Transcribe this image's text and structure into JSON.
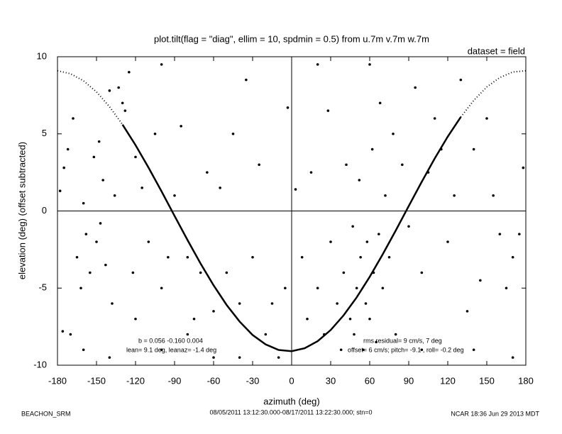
{
  "chart_data": {
    "type": "scatter",
    "title": "plot.tilt(flag = \"diag\", ellim = 10, spdmin = 0.5) from u.7m v.7m w.7m",
    "subtitle": "dataset = field",
    "x_label": "azimuth (deg)",
    "y_label": "elevation (deg)  (offset subtracted)",
    "annotations": [
      "b = 0.056 -0.160  0.004",
      "lean= 9.1 deg, leanaz= -1.4 deg",
      "rms residual= 9 cm/s, 7 deg",
      "offset= 6 cm/s; pitch= -9.1 , roll= -0.2 deg"
    ],
    "footer": [
      "BEACHON_SRM",
      "08/05/2011 13:12:30.000-08/17/2011 13:22:30.000; stn=0",
      "NCAR 18:36 Jun 29 2013 MDT"
    ],
    "xlim": [
      -180,
      180
    ],
    "ylim": [
      -10,
      10
    ],
    "xticks": [
      -180,
      -150,
      -120,
      -90,
      -60,
      -30,
      0,
      30,
      60,
      90,
      120,
      150,
      180
    ],
    "yticks": [
      -10,
      -5,
      0,
      5,
      10
    ],
    "series": [
      {
        "mark": "dot",
        "color": "#000000",
        "x": [
          -178,
          -175,
          -172,
          -168,
          -165,
          -162,
          -160,
          -158,
          -155,
          -152,
          -150,
          -148,
          -147,
          -145,
          -143,
          -140,
          -138,
          -136,
          -133,
          -130,
          -128,
          -125,
          -122,
          -120,
          -115,
          -110,
          -105,
          -100,
          -95,
          -90,
          -85,
          -80,
          -75,
          -70,
          -65,
          -60,
          -55,
          -50,
          -45,
          -40,
          -35,
          -30,
          -25,
          -20,
          -15,
          -10,
          -5,
          -3,
          -170,
          -176,
          -160,
          -140,
          -120,
          -100,
          -80,
          -60,
          -40,
          3,
          8,
          12,
          15,
          20,
          25,
          28,
          30,
          35,
          38,
          40,
          42,
          45,
          47,
          48,
          50,
          52,
          53,
          55,
          57,
          58,
          60,
          62,
          63,
          65,
          67,
          68,
          70,
          72,
          75,
          78,
          80,
          85,
          90,
          95,
          100,
          105,
          110,
          115,
          120,
          125,
          130,
          135,
          140,
          145,
          150,
          155,
          160,
          165,
          170,
          175,
          178,
          100,
          140,
          170,
          20,
          60,
          -100
        ],
        "values": [
          1.3,
          2.8,
          4,
          6,
          -3,
          -5,
          0.5,
          -1.5,
          -4,
          3.5,
          -2,
          4.5,
          -0.8,
          2,
          -3.5,
          7.8,
          -6,
          1,
          8,
          7,
          6.5,
          9,
          -4,
          3.5,
          1.5,
          -2,
          5,
          -5,
          -3,
          1,
          5.5,
          -3,
          -7,
          -4,
          2.5,
          -6.5,
          1.5,
          -4,
          5,
          -6,
          8.5,
          -3,
          3,
          -8,
          -6,
          -9.5,
          -5,
          6.7,
          -8,
          -7.8,
          -9,
          -9.5,
          -7,
          -9,
          -8,
          -9.5,
          -9.5,
          1.4,
          -3,
          -7,
          2.5,
          -5,
          -8,
          6.5,
          -2,
          -6,
          -9,
          -4,
          3,
          -7,
          -1,
          -8,
          -5,
          2,
          -3,
          -9,
          -6,
          -2,
          -7,
          4,
          -4,
          -8.5,
          -1.5,
          7,
          -5,
          1,
          -3,
          5,
          -8,
          3,
          -1,
          8,
          -4,
          2.5,
          6,
          4,
          -2,
          1,
          8.5,
          -6.5,
          4,
          -4.5,
          6,
          1,
          -1.5,
          -5,
          -3,
          -1.5,
          2.8,
          -9,
          -9,
          -9.5,
          9.5,
          9.5,
          9.5
        ]
      },
      {
        "mark": "line",
        "dash": true,
        "color": "#000000",
        "x": [
          -180,
          -170,
          -160,
          -150,
          -140,
          -130
        ],
        "values": [
          9.09,
          8.9,
          8.44,
          7.72,
          6.76,
          5.6
        ]
      },
      {
        "mark": "line",
        "dash": false,
        "color": "#000000",
        "x": [
          -130,
          -120,
          -110,
          -100,
          -90,
          -80,
          -70,
          -60,
          -50,
          -40,
          -30,
          -20,
          -10,
          0,
          10,
          20,
          30,
          40,
          50,
          60,
          70,
          80,
          90,
          100,
          110,
          120,
          130
        ],
        "values": [
          5.6,
          4.27,
          2.81,
          1.27,
          -0.32,
          -1.89,
          -3.41,
          -4.82,
          -6.09,
          -7.17,
          -8.04,
          -8.65,
          -9.01,
          -9.09,
          -8.9,
          -8.44,
          -7.72,
          -6.76,
          -5.6,
          -4.27,
          -2.81,
          -1.27,
          0.32,
          1.89,
          3.41,
          4.82,
          6.09
        ]
      },
      {
        "mark": "line",
        "dash": true,
        "color": "#000000",
        "x": [
          130,
          140,
          150,
          160,
          170,
          180
        ],
        "values": [
          6.09,
          7.17,
          8.04,
          8.65,
          9.01,
          9.09
        ]
      }
    ]
  }
}
